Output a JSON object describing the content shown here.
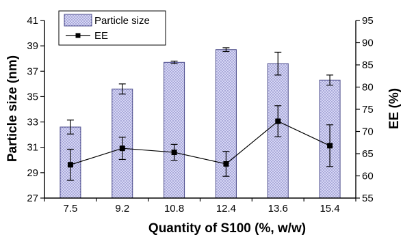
{
  "chart_data": {
    "type": "bar",
    "categories": [
      "7.5",
      "9.2",
      "10.8",
      "12.4",
      "13.6",
      "15.4"
    ],
    "xlabel": "Quantity of S100 (%, w/w)",
    "ylabel": "Particle size (nm)",
    "y2label": "EE (%)",
    "ylim": [
      27,
      41
    ],
    "y2lim": [
      55,
      95
    ],
    "yticks": [
      27,
      29,
      31,
      33,
      35,
      37,
      39,
      41
    ],
    "y2ticks": [
      55,
      60,
      65,
      70,
      75,
      80,
      85,
      90,
      95
    ],
    "legend_position": "top-left",
    "series": [
      {
        "name": "Particle size",
        "type": "bar",
        "axis": "left",
        "values": [
          32.6,
          35.6,
          37.7,
          38.7,
          37.6,
          36.3
        ],
        "errors": [
          0.55,
          0.4,
          0.1,
          0.15,
          0.9,
          0.4
        ],
        "color": "#c8c8f0"
      },
      {
        "name": "EE",
        "type": "line",
        "axis": "right",
        "values": [
          62.5,
          66.2,
          65.3,
          62.7,
          72.3,
          66.8
        ],
        "errors": [
          3.5,
          2.5,
          1.8,
          2.8,
          3.5,
          4.7
        ],
        "color": "#000000"
      }
    ]
  }
}
